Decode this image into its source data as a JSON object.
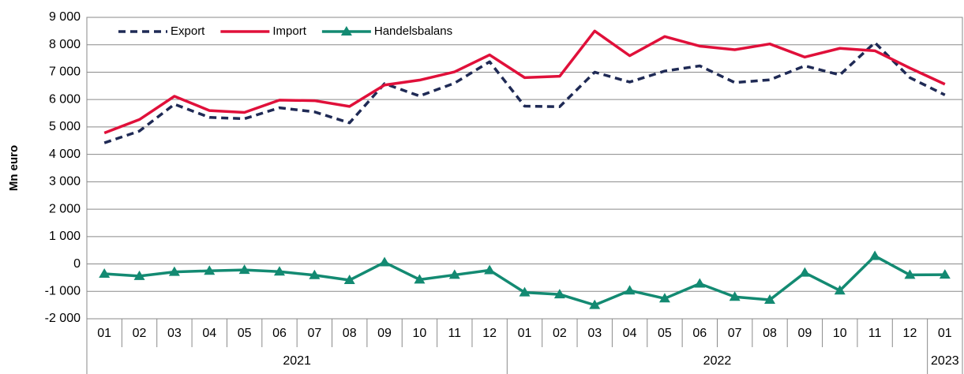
{
  "chart_data": {
    "type": "line",
    "ylabel": "Mn euro",
    "categories": [
      "01",
      "02",
      "03",
      "04",
      "05",
      "06",
      "07",
      "08",
      "09",
      "10",
      "11",
      "12",
      "01",
      "02",
      "03",
      "04",
      "05",
      "06",
      "07",
      "08",
      "09",
      "10",
      "11",
      "12",
      "01"
    ],
    "category_years": [
      "2021",
      "2021",
      "2021",
      "2021",
      "2021",
      "2021",
      "2021",
      "2021",
      "2021",
      "2021",
      "2021",
      "2021",
      "2022",
      "2022",
      "2022",
      "2022",
      "2022",
      "2022",
      "2022",
      "2022",
      "2022",
      "2022",
      "2022",
      "2022",
      "2023"
    ],
    "series": [
      {
        "name": "Export",
        "color": "#1f2a55",
        "dashed": true,
        "marker": null,
        "values": [
          4420,
          4850,
          5830,
          5350,
          5300,
          5700,
          5550,
          5150,
          6580,
          6130,
          6600,
          7380,
          5760,
          5740,
          7000,
          6640,
          7040,
          7230,
          6620,
          6720,
          7230,
          6900,
          8080,
          6800,
          6170
        ]
      },
      {
        "name": "Import",
        "color": "#e0103a",
        "dashed": false,
        "marker": null,
        "values": [
          4780,
          5270,
          6120,
          5600,
          5530,
          5980,
          5960,
          5750,
          6530,
          6710,
          7010,
          7630,
          6800,
          6850,
          8500,
          7600,
          8300,
          7950,
          7820,
          8030,
          7550,
          7870,
          7780,
          7150,
          6560
        ]
      },
      {
        "name": "Handelsbalans",
        "color": "#138a72",
        "dashed": false,
        "marker": "triangle",
        "values": [
          -360,
          -440,
          -290,
          -250,
          -220,
          -280,
          -410,
          -590,
          60,
          -570,
          -400,
          -230,
          -1040,
          -1110,
          -1500,
          -970,
          -1260,
          -720,
          -1200,
          -1310,
          -320,
          -970,
          290,
          -400,
          -390
        ]
      }
    ],
    "ylim": [
      -2000,
      9000
    ],
    "yticks": [
      {
        "value": -2000,
        "label": "-2 000"
      },
      {
        "value": -1000,
        "label": "-1 000"
      },
      0,
      {
        "value": 1000,
        "label": "1 000"
      },
      {
        "value": 2000,
        "label": "2 000"
      },
      {
        "value": 3000,
        "label": "3 000"
      },
      {
        "value": 4000,
        "label": "4 000"
      },
      {
        "value": 5000,
        "label": "5 000"
      },
      {
        "value": 6000,
        "label": "6 000"
      },
      {
        "value": 7000,
        "label": "7 000"
      },
      {
        "value": 8000,
        "label": "8 000"
      },
      {
        "value": 9000,
        "label": "9 000"
      }
    ],
    "grid": true,
    "legend": "top-left"
  }
}
